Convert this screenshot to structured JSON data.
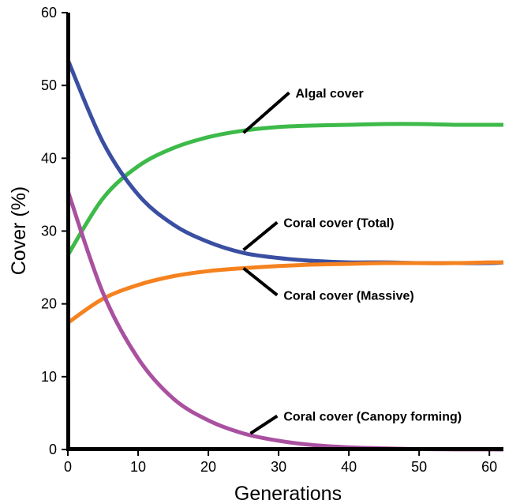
{
  "chart_data": {
    "type": "line",
    "title": "",
    "xlabel": "Generations",
    "ylabel": "Cover (%)",
    "xlim": [
      0,
      62
    ],
    "ylim": [
      0,
      60
    ],
    "xticks": [
      0,
      10,
      20,
      30,
      40,
      50,
      60
    ],
    "yticks": [
      0,
      10,
      20,
      30,
      40,
      50,
      60
    ],
    "x_tick_labels": [
      "0",
      "10",
      "20",
      "30",
      "40",
      "50",
      "60"
    ],
    "y_tick_labels": [
      "0",
      "10",
      "20",
      "30",
      "40",
      "50",
      "60"
    ],
    "grid": false,
    "legend": "none",
    "x": [
      0,
      5,
      10,
      15,
      20,
      25,
      30,
      35,
      40,
      45,
      50,
      55,
      60,
      62
    ],
    "series": [
      {
        "name": "Algal cover",
        "color": "#3dba49",
        "values": [
          26.7,
          34.5,
          38.9,
          41.4,
          42.9,
          43.8,
          44.3,
          44.5,
          44.6,
          44.7,
          44.7,
          44.6,
          44.6,
          44.6
        ]
      },
      {
        "name": "Coral cover (Total)",
        "color": "#3a4fa2",
        "values": [
          53.5,
          42.2,
          35.0,
          30.9,
          28.5,
          27.0,
          26.3,
          25.9,
          25.7,
          25.7,
          25.6,
          25.6,
          25.6,
          25.7
        ]
      },
      {
        "name": "Coral cover (Massive)",
        "color": "#f5821f",
        "values": [
          17.4,
          20.7,
          22.6,
          23.8,
          24.5,
          24.9,
          25.2,
          25.4,
          25.5,
          25.6,
          25.6,
          25.6,
          25.7,
          25.7
        ]
      },
      {
        "name": "Coral cover (Canopy forming)",
        "color": "#a951a0",
        "values": [
          35.5,
          21.5,
          12.5,
          7.0,
          4.0,
          2.2,
          1.2,
          0.6,
          0.3,
          0.15,
          0.05,
          0.02,
          0.01,
          0.0
        ]
      }
    ],
    "annotations": [
      {
        "text": "Algal cover",
        "series": "Algal cover",
        "x": 25.0,
        "y": 43.5,
        "tx": 31.5,
        "ty": 49.0
      },
      {
        "text": "Coral cover (Total)",
        "series": "Coral cover (Total)",
        "x": 25.0,
        "y": 27.4,
        "tx": 29.8,
        "ty": 31.2
      },
      {
        "text": "Coral cover (Massive)",
        "series": "Coral cover (Massive)",
        "x": 25.0,
        "y": 24.9,
        "tx": 29.8,
        "ty": 21.2
      },
      {
        "text": "Coral cover (Canopy forming)",
        "series": "Coral cover (Canopy forming)",
        "x": 26.0,
        "y": 2.2,
        "tx": 29.8,
        "ty": 4.6
      }
    ]
  }
}
